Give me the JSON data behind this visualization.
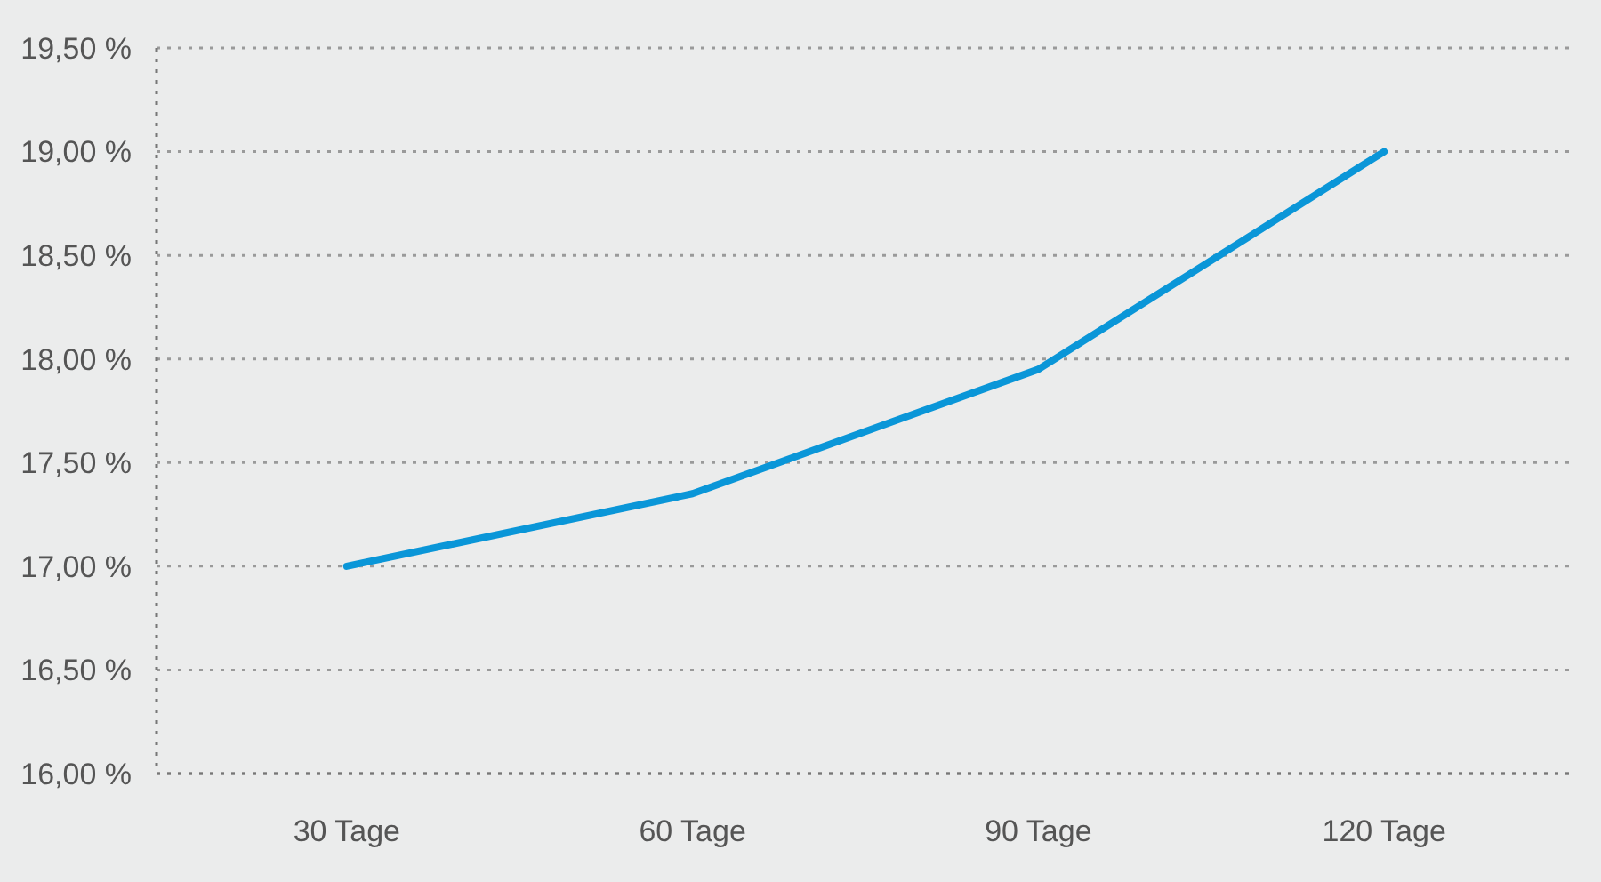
{
  "chart_data": {
    "type": "line",
    "categories": [
      "30 Tage",
      "60 Tage",
      "90 Tage",
      "120 Tage"
    ],
    "series": [
      {
        "color": "#0a96d8",
        "values": [
          17.0,
          17.35,
          17.95,
          19.0
        ]
      }
    ],
    "ylim": [
      16,
      19.5
    ],
    "yticks": [
      {
        "value": 16,
        "label": "16,00 %"
      },
      {
        "value": 16.5,
        "label": "16,50 %"
      },
      {
        "value": 17,
        "label": "17,00 %"
      },
      {
        "value": 17.5,
        "label": "17,50 %"
      },
      {
        "value": 18,
        "label": "18,00 %"
      },
      {
        "value": 18.5,
        "label": "18,50 %"
      },
      {
        "value": 19,
        "label": "19,00 %"
      },
      {
        "value": 19.5,
        "label": "19,50 %"
      }
    ],
    "grid": "y",
    "marker": "none",
    "line_style": "solid"
  }
}
